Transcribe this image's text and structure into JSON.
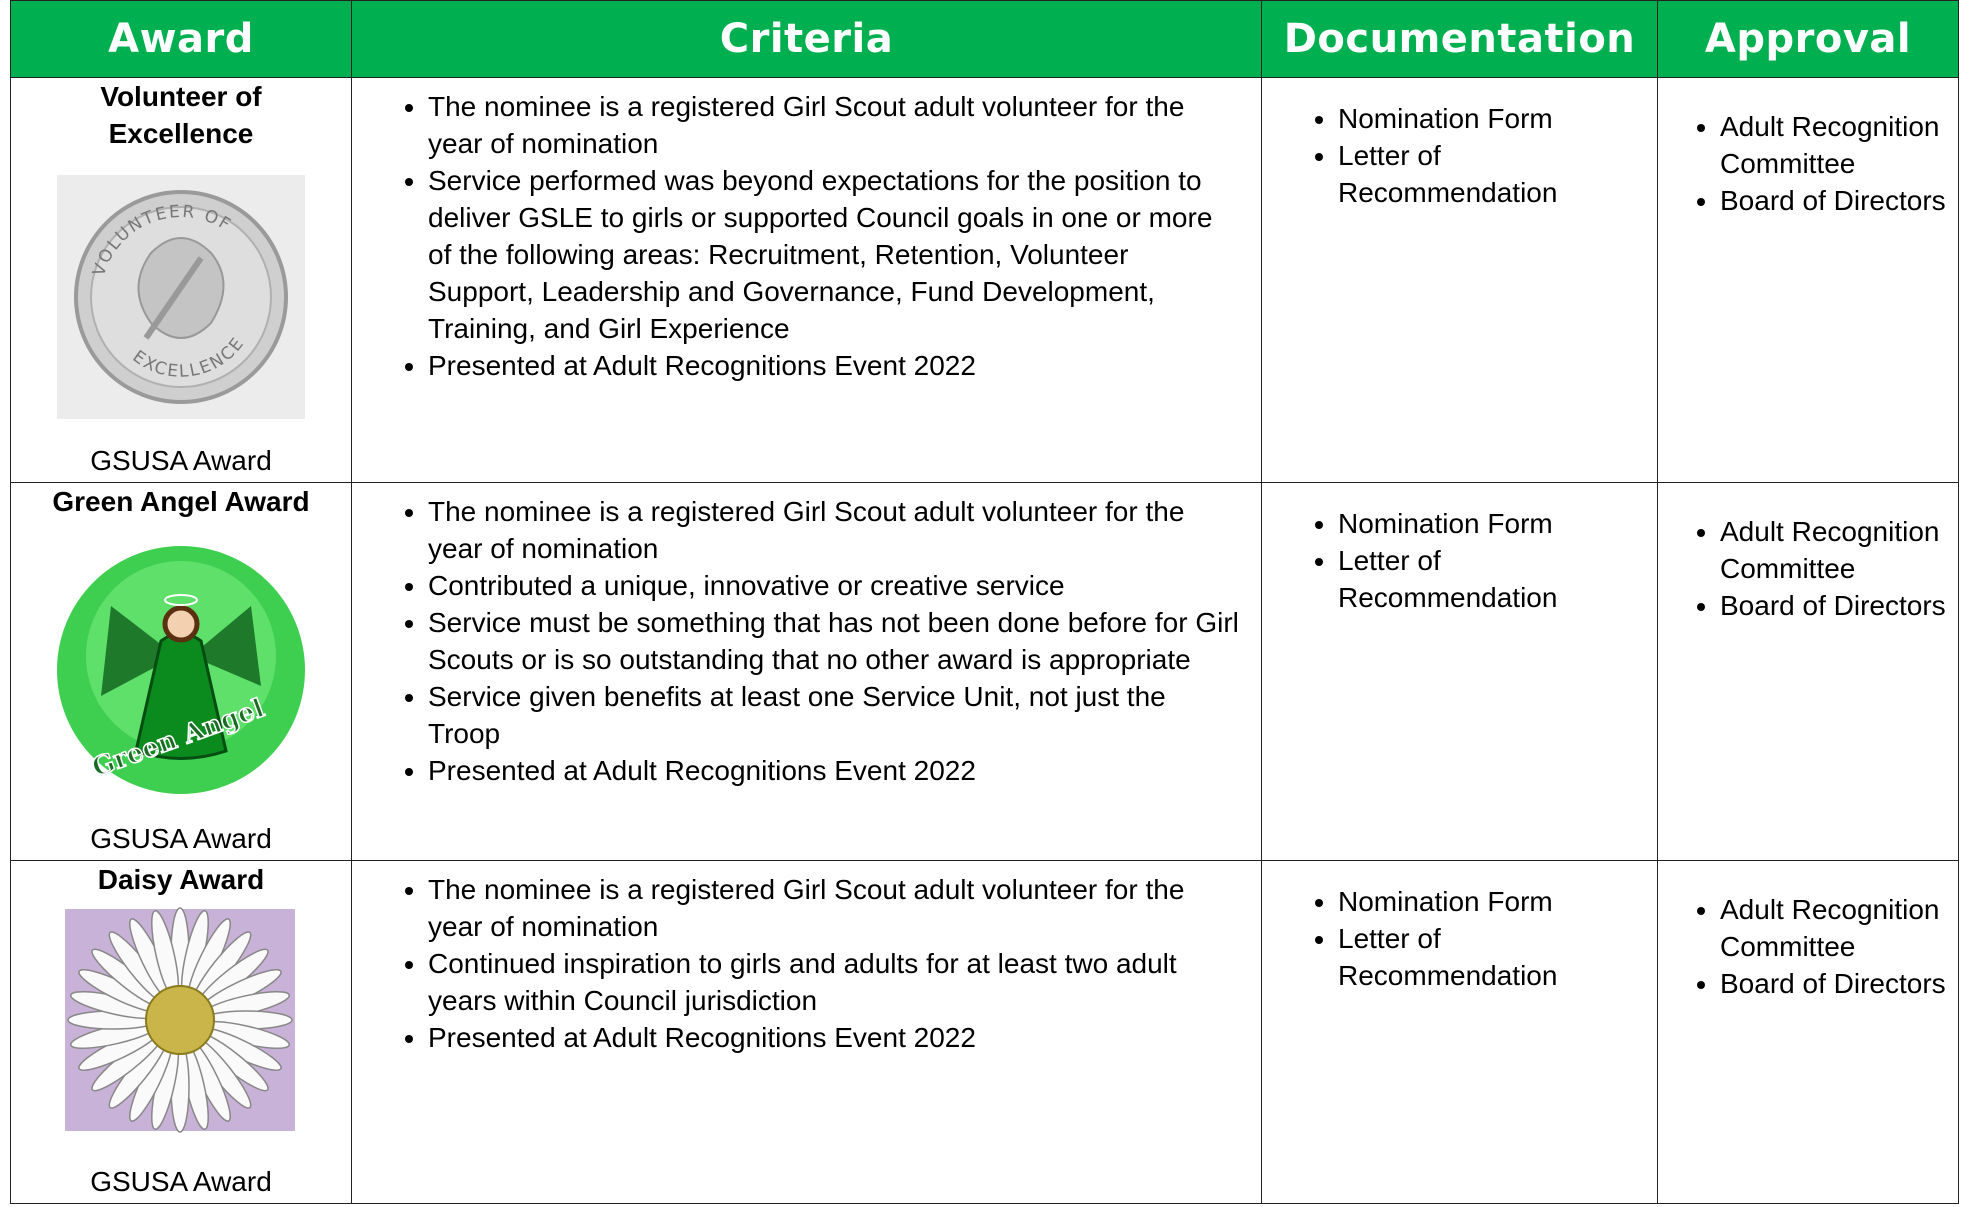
{
  "table": {
    "headers": [
      "Award",
      "Criteria",
      "Documentation",
      "Approval"
    ],
    "rows": [
      {
        "award": "Volunteer of Excellence",
        "badge_text": [
          "VOLUNTEER OF",
          "EXCELLENCE"
        ],
        "source": "GSUSA Award",
        "criteria": [
          "The nominee is a registered Girl Scout adult volunteer for the year of nomination",
          "Service performed was beyond expectations for the position to deliver GSLE to girls or supported Council goals in one or more of the following areas: Recruitment, Retention, Volunteer Support,  Leadership and Governance, Fund Development, Training, and Girl Experience",
          "Presented at Adult Recognitions Event 2022"
        ],
        "documentation": [
          "Nomination Form",
          "Letter of Recommendation"
        ],
        "approval": [
          "Adult Recognition Committee",
          "Board of Directors"
        ]
      },
      {
        "award": "Green Angel Award",
        "badge_text": [
          "Green Angel"
        ],
        "source": "GSUSA Award",
        "criteria": [
          "The nominee is a registered Girl Scout adult volunteer for the year of nomination",
          "Contributed a unique, innovative or creative service",
          "Service must be something that has not been done before for Girl Scouts or is so outstanding that no other award is appropriate",
          "Service given benefits at least one Service Unit, not just the Troop",
          "Presented at Adult Recognitions Event 2022"
        ],
        "documentation": [
          "Nomination Form",
          "Letter of Recommendation"
        ],
        "approval": [
          "Adult Recognition Committee",
          "Board of Directors"
        ]
      },
      {
        "award": "Daisy Award",
        "source": "GSUSA Award",
        "criteria": [
          "The nominee is a registered Girl Scout adult volunteer for the year of nomination",
          "Continued inspiration to girls and adults for at least two adult years within Council jurisdiction",
          "Presented at Adult Recognitions Event 2022"
        ],
        "documentation": [
          "Nomination Form",
          "Letter of Recommendation"
        ],
        "approval": [
          "Adult Recognition Committee",
          "Board of Directors"
        ]
      }
    ]
  }
}
